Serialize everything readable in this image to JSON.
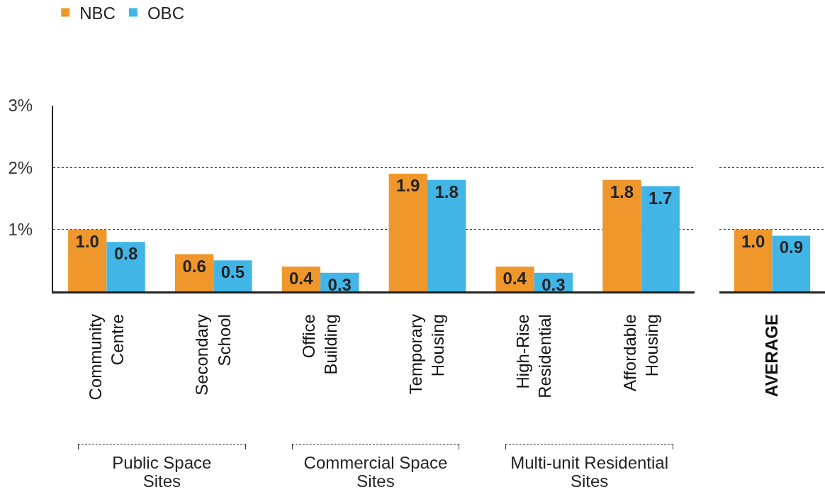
{
  "chart_data": [
    {
      "type": "bar",
      "categories": [
        "Community Centre",
        "Secondary School",
        "Office Building",
        "Temporary Housing",
        "High-Rise Residential",
        "Affordable Housing"
      ],
      "series": [
        {
          "name": "NBC",
          "color": "#ef972b",
          "values": [
            1.0,
            0.6,
            0.4,
            1.9,
            0.4,
            1.8
          ],
          "value_labels": [
            "1.0",
            "0.6",
            "0.4",
            "1.9",
            "0.4",
            "1.8"
          ]
        },
        {
          "name": "OBC",
          "color": "#42b5e7",
          "values": [
            0.8,
            0.5,
            0.3,
            1.8,
            0.3,
            1.7
          ],
          "value_labels": [
            "0.8",
            "0.5",
            "0.3",
            "1.8",
            "0.3",
            "1.7"
          ]
        }
      ],
      "ylim": [
        0,
        3
      ],
      "yticks": [
        {
          "value": 0,
          "label": null
        },
        {
          "value": 1,
          "label": "1%"
        },
        {
          "value": 2,
          "label": "2%"
        },
        {
          "value": 3,
          "label": "3%"
        }
      ],
      "grid": "y",
      "legend": "top left",
      "annotations": [
        "Public Space Sites",
        "Commercial Space Sites",
        "Multi-unit Residential Sites"
      ]
    },
    {
      "type": "bar",
      "categories": [
        "AVERAGE"
      ],
      "series": [
        {
          "color": "#ef972b",
          "values": [
            1.0
          ],
          "value_labels": [
            "1.0"
          ]
        },
        {
          "color": "#42b5e7",
          "values": [
            0.9
          ],
          "value_labels": [
            "0.9"
          ]
        }
      ],
      "ylim": [
        0,
        3
      ],
      "yticks": [
        0,
        1,
        2,
        3
      ],
      "grid": "y",
      "tick_labels": "x"
    }
  ]
}
